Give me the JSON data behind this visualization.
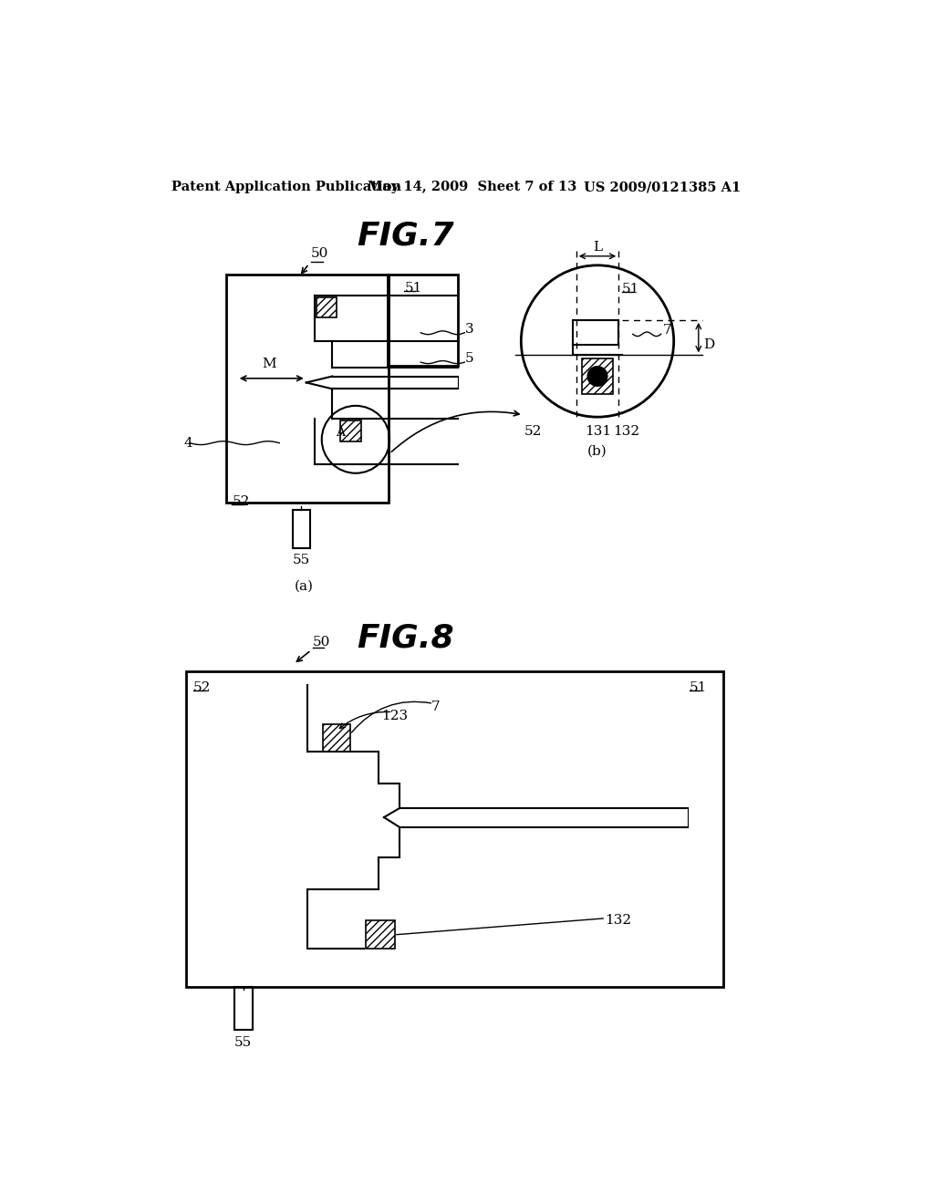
{
  "bg_color": "#ffffff",
  "header_text": "Patent Application Publication",
  "header_date": "May 14, 2009  Sheet 7 of 13",
  "header_patent": "US 2009/0121385 A1",
  "fig7_title": "FIG.7",
  "fig8_title": "FIG.8",
  "fig7a_caption": "(a)",
  "fig7b_caption": "(b)"
}
